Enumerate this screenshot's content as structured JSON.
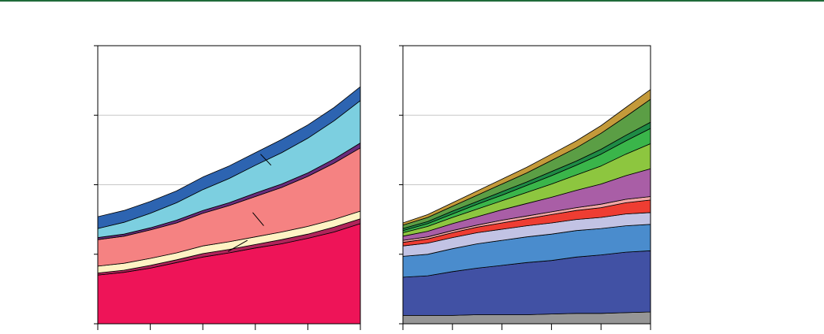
{
  "colors": {
    "top_rule": "#1f6b3a",
    "axis": "#000000",
    "grid": "#c8c8c8"
  },
  "chart_data": [
    {
      "type": "area",
      "stacked": true,
      "title": "",
      "xlabel": "",
      "ylabel": "",
      "x": [
        0,
        0.5,
        1,
        1.5,
        2,
        2.5,
        3,
        3.5,
        4,
        4.5,
        5
      ],
      "ylim": [
        0,
        4
      ],
      "xticks": 6,
      "yticks": 5,
      "grid": true,
      "series": [
        {
          "color": "#ee1458",
          "values": [
            0.7,
            0.74,
            0.8,
            0.88,
            0.96,
            1.02,
            1.09,
            1.15,
            1.23,
            1.32,
            1.44
          ]
        },
        {
          "color": "#b0245a",
          "values": [
            0.03,
            0.03,
            0.04,
            0.04,
            0.05,
            0.05,
            0.05,
            0.06,
            0.06,
            0.07,
            0.07
          ]
        },
        {
          "color": "#fff3c4",
          "values": [
            0.1,
            0.1,
            0.1,
            0.1,
            0.11,
            0.11,
            0.11,
            0.11,
            0.11,
            0.11,
            0.11
          ]
        },
        {
          "color": "#f58282",
          "values": [
            0.38,
            0.39,
            0.41,
            0.43,
            0.47,
            0.52,
            0.58,
            0.64,
            0.72,
            0.81,
            0.91
          ]
        },
        {
          "color": "#6a2c7c",
          "values": [
            0.03,
            0.03,
            0.03,
            0.04,
            0.04,
            0.04,
            0.05,
            0.05,
            0.05,
            0.06,
            0.07
          ]
        },
        {
          "color": "#7ccfe0",
          "values": [
            0.13,
            0.17,
            0.21,
            0.25,
            0.3,
            0.35,
            0.4,
            0.45,
            0.5,
            0.55,
            0.61
          ]
        },
        {
          "color": "#2d64b1",
          "values": [
            0.17,
            0.17,
            0.17,
            0.17,
            0.18,
            0.18,
            0.18,
            0.19,
            0.19,
            0.19,
            0.2
          ]
        }
      ],
      "annotation_lines": [
        {
          "x1": 3.1,
          "y1": 2.44,
          "x2": 3.3,
          "y2": 2.28
        },
        {
          "x1": 2.95,
          "y1": 1.6,
          "x2": 3.16,
          "y2": 1.41
        },
        {
          "x1": 2.85,
          "y1": 1.2,
          "x2": 2.48,
          "y2": 1.04
        }
      ]
    },
    {
      "type": "area",
      "stacked": true,
      "title": "",
      "xlabel": "",
      "ylabel": "",
      "x": [
        0,
        0.5,
        1,
        1.5,
        2,
        2.5,
        3,
        3.5,
        4,
        4.5,
        5
      ],
      "ylim": [
        0,
        4
      ],
      "xticks": 6,
      "yticks": 5,
      "grid": true,
      "series": [
        {
          "color": "#969696",
          "values": [
            0.12,
            0.12,
            0.12,
            0.13,
            0.13,
            0.13,
            0.14,
            0.15,
            0.15,
            0.16,
            0.17
          ]
        },
        {
          "color": "#4151a4",
          "values": [
            0.55,
            0.57,
            0.63,
            0.67,
            0.71,
            0.75,
            0.77,
            0.81,
            0.84,
            0.87,
            0.88
          ]
        },
        {
          "color": "#4a8ccd",
          "values": [
            0.3,
            0.31,
            0.33,
            0.35,
            0.36,
            0.37,
            0.38,
            0.38,
            0.38,
            0.38,
            0.38
          ]
        },
        {
          "color": "#c2c3e4",
          "values": [
            0.15,
            0.16,
            0.16,
            0.16,
            0.16,
            0.16,
            0.16,
            0.16,
            0.16,
            0.17,
            0.17
          ]
        },
        {
          "color": "#ee3d32",
          "values": [
            0.05,
            0.06,
            0.07,
            0.08,
            0.09,
            0.1,
            0.12,
            0.13,
            0.14,
            0.16,
            0.18
          ]
        },
        {
          "color": "#f3a7a6",
          "values": [
            0.03,
            0.03,
            0.03,
            0.03,
            0.04,
            0.04,
            0.04,
            0.04,
            0.05,
            0.05,
            0.05
          ]
        },
        {
          "color": "#a95ea6",
          "values": [
            0.06,
            0.08,
            0.1,
            0.12,
            0.15,
            0.18,
            0.21,
            0.25,
            0.29,
            0.34,
            0.4
          ]
        },
        {
          "color": "#8dc63f",
          "values": [
            0.05,
            0.07,
            0.09,
            0.11,
            0.13,
            0.16,
            0.19,
            0.22,
            0.26,
            0.31,
            0.36
          ]
        },
        {
          "color": "#3ab54a",
          "values": [
            0.03,
            0.04,
            0.05,
            0.07,
            0.08,
            0.1,
            0.12,
            0.14,
            0.17,
            0.19,
            0.22
          ]
        },
        {
          "color": "#1e8b45",
          "values": [
            0.03,
            0.03,
            0.04,
            0.04,
            0.05,
            0.05,
            0.06,
            0.06,
            0.07,
            0.08,
            0.09
          ]
        },
        {
          "color": "#5b9e45",
          "values": [
            0.05,
            0.06,
            0.07,
            0.09,
            0.11,
            0.13,
            0.16,
            0.19,
            0.23,
            0.27,
            0.33
          ]
        },
        {
          "color": "#c49a3a",
          "values": [
            0.03,
            0.04,
            0.05,
            0.06,
            0.07,
            0.08,
            0.09,
            0.1,
            0.11,
            0.13,
            0.14
          ]
        }
      ]
    }
  ]
}
